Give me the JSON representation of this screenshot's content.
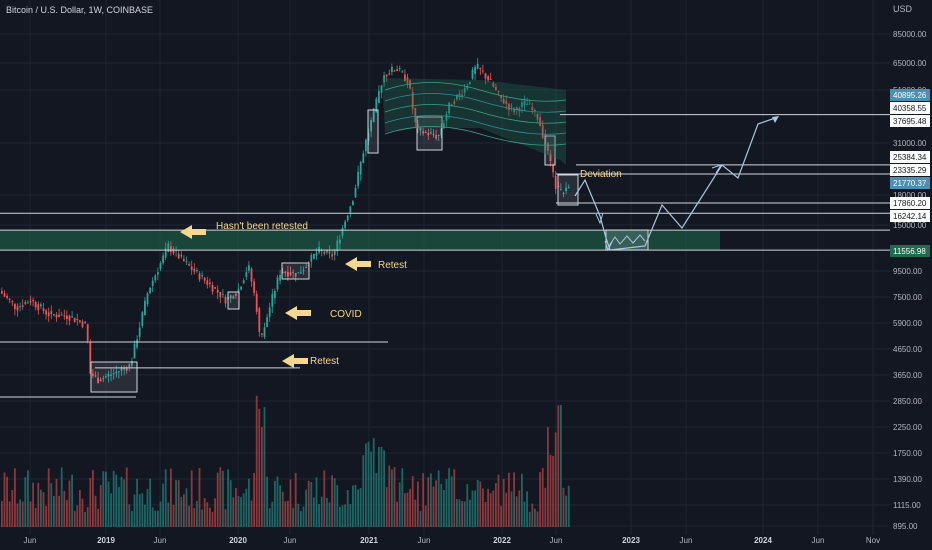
{
  "header": {
    "symbol_title": "Bitcoin / U.S. Dollar, 1W, COINBASE",
    "currency": "USD"
  },
  "chart_data": {
    "type": "candlestick",
    "title": "Bitcoin / U.S. Dollar, 1W, COINBASE",
    "y_scale": "log",
    "y_tick_labels": [
      "85000.00",
      "65000.00",
      "51000.00",
      "31000.00",
      "18000.00",
      "15000.00",
      "9500.00",
      "7500.00",
      "5900.00",
      "4650.00",
      "3650.00",
      "2850.00",
      "2250.00",
      "1750.00",
      "1390.00",
      "1115.00",
      "895.00"
    ],
    "price_tags": [
      {
        "label": "40895.26",
        "color": "#4a8fb5"
      },
      {
        "label": "40358.55",
        "color": "#ffffff"
      },
      {
        "label": "37695.48",
        "color": "#ffffff"
      },
      {
        "label": "25384.34",
        "color": "#ffffff"
      },
      {
        "label": "23335.29",
        "color": "#ffffff"
      },
      {
        "label": "21770.37",
        "color": "#4a8fb5"
      },
      {
        "label": "17860.20",
        "color": "#ffffff"
      },
      {
        "label": "16242.14",
        "color": "#ffffff"
      },
      {
        "label": "11556.98",
        "color": "#1f6b4f"
      }
    ],
    "x_tick_labels": [
      "Jun",
      "2019",
      "Jun",
      "2020",
      "Jun",
      "2021",
      "Jun",
      "2022",
      "Jun",
      "2023",
      "Jun",
      "2024",
      "Jun",
      "Nov"
    ],
    "annotations": [
      {
        "text": "Hasn't been retested"
      },
      {
        "text": "Retest"
      },
      {
        "text": "COVID"
      },
      {
        "text": "Retest"
      },
      {
        "text": "Deviation"
      }
    ],
    "key_levels": [
      "11556.98",
      "17860.20",
      "16242.14",
      "25384.34",
      "23335.29",
      "40358.55"
    ],
    "colors": {
      "background": "#131722",
      "up_candle": "#26a69a",
      "down_candle": "#ef5350",
      "support_zone": "#1f6b4f",
      "annotation_arrow": "#f5d78e",
      "projection": "#a9c7e0"
    }
  }
}
